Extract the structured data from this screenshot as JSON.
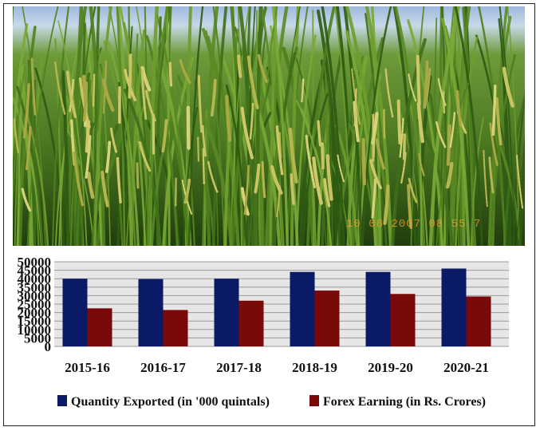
{
  "photo": {
    "subject": "rice paddy field with ripening grain panicles",
    "date_stamp": "10 08 2007 08 55 7"
  },
  "colors": {
    "series1": "#0b1a66",
    "series2": "#7a0a0a",
    "grid": "#9a9a9a",
    "plot_band": "#e6e6e6"
  },
  "chart_data": {
    "type": "bar",
    "title": "",
    "xlabel": "",
    "ylabel": "",
    "ylim": [
      0,
      50000
    ],
    "yticks": [
      "0",
      "5000",
      "10000",
      "15000",
      "20000",
      "25000",
      "30000",
      "35000",
      "40000",
      "45000",
      "50000"
    ],
    "categories": [
      "2015-16",
      "2016-17",
      "2017-18",
      "2018-19",
      "2019-20",
      "2020-21"
    ],
    "series": [
      {
        "name": "Quantity Exported (in '000 quintals)",
        "values": [
          40000,
          39800,
          40000,
          44000,
          44000,
          46000
        ]
      },
      {
        "name": "Forex Earning (in Rs. Crores)",
        "values": [
          22500,
          21500,
          27000,
          33000,
          31000,
          29500
        ]
      }
    ],
    "grid": true,
    "legend_position": "bottom"
  }
}
